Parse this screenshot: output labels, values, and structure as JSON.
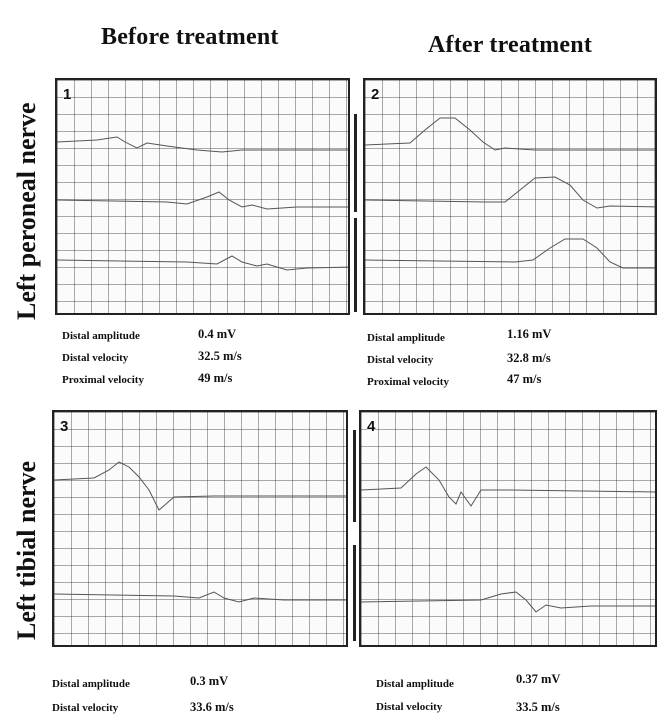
{
  "columns": {
    "before": "Before treatment",
    "after": "After treatment"
  },
  "rows": {
    "peroneal": "Left peroneal nerve",
    "tibial": "Left tibial nerve"
  },
  "panels": [
    {
      "number": "1"
    },
    {
      "number": "2"
    },
    {
      "number": "3"
    },
    {
      "number": "4"
    }
  ],
  "measurements": {
    "panel1": [
      {
        "label": "Distal amplitude",
        "value": "0.4 mV"
      },
      {
        "label": "Distal velocity",
        "value": "32.5 m/s"
      },
      {
        "label": "Proximal velocity",
        "value": "49 m/s"
      }
    ],
    "panel2": [
      {
        "label": "Distal amplitude",
        "value": "1.16 mV"
      },
      {
        "label": "Distal velocity",
        "value": "32.8 m/s"
      },
      {
        "label": "Proximal velocity",
        "value": "47 m/s"
      }
    ],
    "panel3": [
      {
        "label": "Distal amplitude",
        "value": "0.3 mV"
      },
      {
        "label": "Distal velocity",
        "value": "33.6 m/s"
      }
    ],
    "panel4": [
      {
        "label": "Distal amplitude",
        "value": "0.37 mV"
      },
      {
        "label": "Distal velocity",
        "value": "33.5 m/s"
      }
    ]
  },
  "colors": {
    "trace": "#555555",
    "grid": "#555555",
    "border": "#222222"
  }
}
